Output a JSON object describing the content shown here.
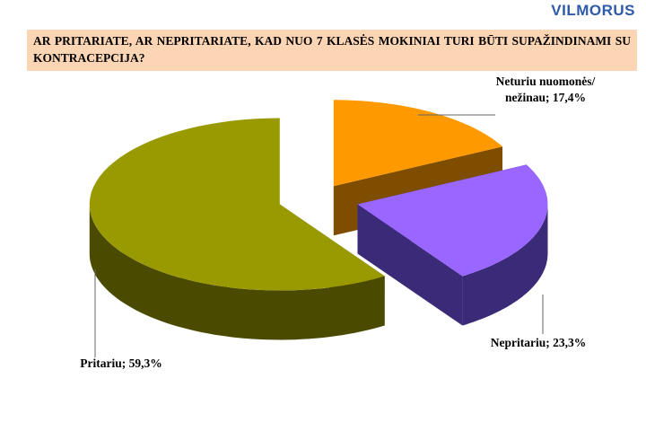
{
  "logo": "VILMORUS",
  "chart_data": {
    "type": "pie",
    "title": "AR PRITARIATE, AR NEPRITARIATE, KAD NUO 7 KLASĖS MOKINIAI TURI BŪTI SUPAŽINDINAMI SU KONTRACEPCIJA?",
    "values": [
      17.4,
      23.3,
      59.3
    ],
    "value_labels": [
      "Neturiu nuomonės/ nežinau; 17,4%",
      "Nepritariu; 23,3%",
      "Pritariu; 59,3%"
    ],
    "colors": [
      "#ff9900",
      "#9966ff",
      "#999900"
    ],
    "side_colors": [
      "#7f4d00",
      "#3b2a78",
      "#4a4a00"
    ]
  }
}
